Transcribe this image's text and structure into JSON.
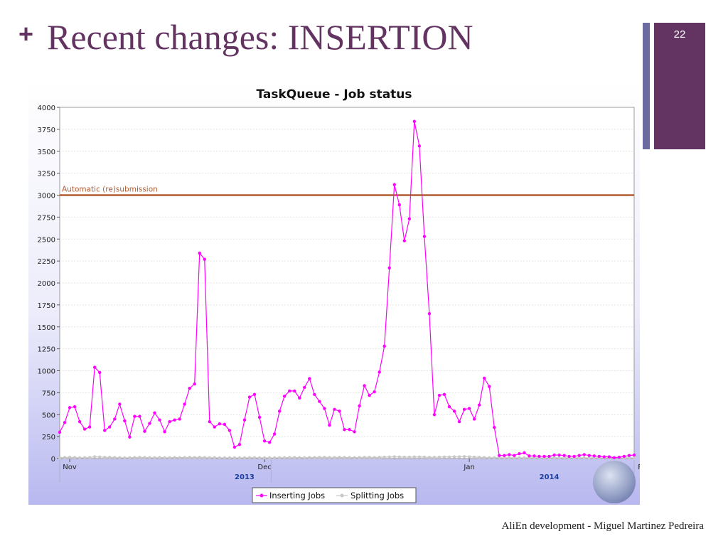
{
  "slide": {
    "plus": "+",
    "title": "Recent changes: INSERTION",
    "number": "22",
    "footer": "AliEn development - Miguel Martinez Pedreira",
    "accent_color": "#633462",
    "bar_color": "#6b6b9f"
  },
  "chart_data": {
    "type": "line",
    "title": "TaskQueue - Job status",
    "ylim": [
      0,
      4000
    ],
    "yticks": [
      0,
      250,
      500,
      750,
      1000,
      1250,
      1500,
      1750,
      2000,
      2250,
      2500,
      2750,
      3000,
      3250,
      3500,
      3750,
      4000
    ],
    "xaxis": {
      "months": [
        "Nov",
        "Dec",
        "Jan",
        "Feb"
      ],
      "years": [
        "2013",
        "2014"
      ]
    },
    "threshold": {
      "label": "Automatic (re)submission",
      "value": 3000,
      "color": "#b05a30"
    },
    "legend": {
      "placement": "bottom-center"
    },
    "series": [
      {
        "name": "Inserting Jobs",
        "color": "#ff00ff",
        "values": [
          300,
          410,
          580,
          590,
          420,
          335,
          360,
          1040,
          980,
          320,
          360,
          450,
          620,
          430,
          245,
          480,
          480,
          310,
          400,
          520,
          440,
          305,
          420,
          440,
          450,
          620,
          800,
          850,
          2340,
          2270,
          420,
          360,
          395,
          390,
          320,
          130,
          160,
          440,
          700,
          730,
          470,
          200,
          185,
          280,
          540,
          710,
          770,
          770,
          690,
          810,
          910,
          730,
          650,
          570,
          380,
          560,
          540,
          330,
          330,
          305,
          600,
          830,
          720,
          760,
          985,
          1280,
          2170,
          3120,
          2890,
          2480,
          2730,
          3840,
          3560,
          2530,
          1650,
          500,
          720,
          730,
          590,
          540,
          420,
          560,
          570,
          450,
          610,
          915,
          820,
          355,
          35,
          35,
          45,
          35,
          55,
          65,
          30,
          30,
          25,
          25,
          25,
          40,
          40,
          35,
          25,
          25,
          35,
          45,
          35,
          30,
          25,
          20,
          20,
          10,
          15,
          25,
          35,
          40
        ]
      },
      {
        "name": "Splitting Jobs",
        "color": "#c8c8c8",
        "values": [
          10,
          12,
          14,
          12,
          8,
          10,
          12,
          20,
          18,
          14,
          14,
          12,
          10,
          8,
          10,
          12,
          14,
          12,
          10,
          10,
          12,
          10,
          10,
          12,
          10,
          12,
          14,
          12,
          14,
          12,
          10,
          10,
          8,
          8,
          8,
          8,
          8,
          8,
          10,
          10,
          8,
          8,
          8,
          8,
          10,
          10,
          12,
          12,
          10,
          10,
          12,
          12,
          14,
          14,
          12,
          12,
          14,
          12,
          12,
          10,
          12,
          14,
          14,
          12,
          14,
          16,
          18,
          20,
          18,
          16,
          16,
          18,
          18,
          16,
          14,
          14,
          16,
          18,
          18,
          20,
          20,
          22,
          20,
          16,
          14,
          12,
          10,
          10,
          8,
          8,
          8,
          8,
          8,
          8,
          8,
          8,
          8,
          8,
          8,
          8,
          8,
          8,
          8,
          8,
          8,
          8,
          8,
          8,
          8,
          8,
          8,
          8,
          8,
          8,
          8,
          8
        ]
      }
    ]
  }
}
